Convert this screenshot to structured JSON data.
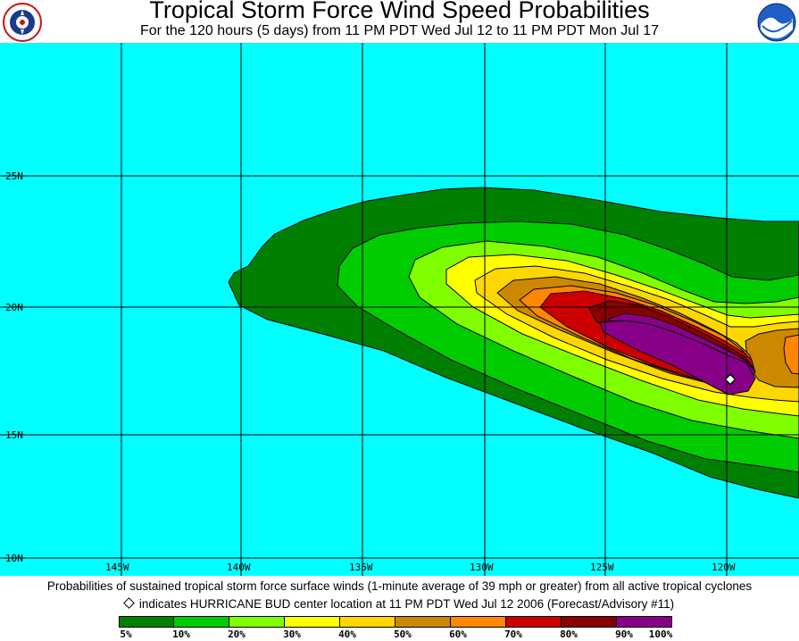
{
  "header": {
    "title": "Tropical Storm Force Wind Speed Probabilities",
    "subtitle": "For the 120 hours (5 days) from 11 PM PDT Wed Jul 12 to 11 PM PDT Mon Jul 17",
    "left_logo": "nws-logo",
    "right_logo": "noaa-logo"
  },
  "map": {
    "ocean_color": "#00ffff",
    "lat_labels": [
      "25N",
      "20N",
      "15N",
      "10N"
    ],
    "lon_labels": [
      "145W",
      "140W",
      "135W",
      "130W",
      "125W",
      "120W"
    ],
    "storm_marker": "diamond"
  },
  "footer": {
    "description": "Probabilities of sustained tropical storm force surface winds (1-minute average of 39 mph or greater) from all active tropical cyclones",
    "marker_note": "indicates HURRICANE BUD center location at 11 PM PDT Wed Jul 12 2006 (Forecast/Advisory #11)"
  },
  "legend": {
    "colors": [
      "#008000",
      "#00cc00",
      "#80ff00",
      "#ffff00",
      "#ffd700",
      "#cc8800",
      "#ff8800",
      "#cc0000",
      "#880000",
      "#880088"
    ],
    "tick_labels": [
      "5%",
      "10%",
      "20%",
      "30%",
      "40%",
      "50%",
      "60%",
      "70%",
      "80%",
      "90%",
      "100%"
    ]
  }
}
